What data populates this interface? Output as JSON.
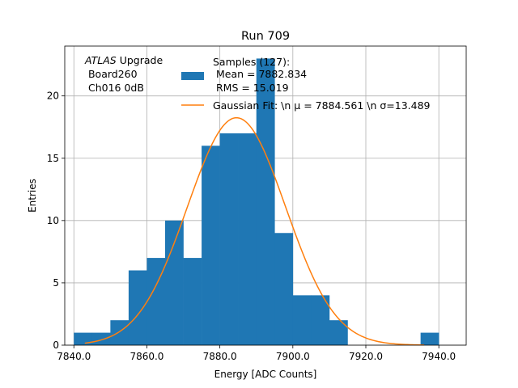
{
  "chart_data": {
    "type": "bar",
    "title": "Run 709",
    "xlabel": "Energy [ADC Counts]",
    "ylabel": "Entries",
    "xlim": [
      7837.5,
      7947.5
    ],
    "ylim": [
      0,
      24
    ],
    "x_ticks": [
      7840,
      7860,
      7880,
      7900,
      7920,
      7940
    ],
    "x_tick_labels": [
      "7840.0",
      "7860.0",
      "7880.0",
      "7900.0",
      "7920.0",
      "7940.0"
    ],
    "y_ticks": [
      0,
      5,
      10,
      15,
      20
    ],
    "y_tick_labels": [
      "0",
      "5",
      "10",
      "15",
      "20"
    ],
    "grid": true,
    "annotation": {
      "line1_italic": "ATLAS",
      "line1_rest": " Upgrade",
      "line2": " Board260",
      "line3": " Ch016 0dB"
    },
    "legend": {
      "placement": "top-center",
      "hist_label_lines": [
        "Samples (127):",
        " Mean = 7882.834",
        " RMS = 15.019"
      ],
      "fit_label": "Gaussian Fit: \\n μ = 7884.561 \\n σ=13.489"
    },
    "histogram": {
      "name": "Samples (127)",
      "color": "#1f77b4",
      "bin_width": 5,
      "bins_left": [
        7840,
        7845,
        7850,
        7855,
        7860,
        7865,
        7870,
        7875,
        7880,
        7885,
        7890,
        7895,
        7900,
        7905,
        7910,
        7915,
        7920,
        7925,
        7930,
        7935
      ],
      "counts": [
        1,
        1,
        2,
        6,
        7,
        10,
        7,
        16,
        17,
        17,
        23,
        9,
        4,
        4,
        2,
        0,
        0,
        0,
        0,
        1
      ]
    },
    "gaussian_fit": {
      "name": "Gaussian Fit",
      "color": "#ff7f0e",
      "mu": 7884.561,
      "sigma": 13.489,
      "amplitude": 18.25,
      "x_range": [
        7843,
        7936
      ]
    }
  }
}
